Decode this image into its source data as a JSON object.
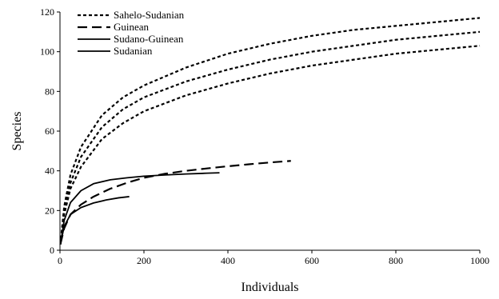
{
  "chart_data": {
    "type": "line",
    "xlabel": "Individuals",
    "ylabel": "Species",
    "xlim": [
      0,
      1000
    ],
    "ylim": [
      0,
      120
    ],
    "xticks": [
      0,
      200,
      400,
      600,
      800,
      1000
    ],
    "yticks": [
      0,
      20,
      40,
      60,
      80,
      100,
      120
    ],
    "grid": false,
    "legend_position": "top-left",
    "legend": [
      "Sahelo-Sudanian",
      "Guinean",
      "Sudano-Guinean",
      "Sudanian"
    ],
    "series": [
      {
        "name": "Sahelo-Sudanian",
        "style": "dotted",
        "curves": [
          {
            "x": [
              1,
              10,
              25,
              50,
              100,
              150,
              200,
              300,
              400,
              500,
              600,
              700,
              800,
              900,
              1000
            ],
            "y": [
              3,
              22,
              38,
              52,
              68,
              77,
              83,
              92,
              99,
              104,
              108,
              111,
              113,
              115,
              117
            ]
          },
          {
            "x": [
              1,
              10,
              25,
              50,
              100,
              150,
              200,
              300,
              400,
              500,
              600,
              700,
              800,
              900,
              1000
            ],
            "y": [
              3,
              20,
              34,
              47,
              62,
              71,
              77,
              85,
              91,
              96,
              100,
              103,
              106,
              108,
              110
            ]
          },
          {
            "x": [
              1,
              10,
              25,
              50,
              100,
              150,
              200,
              300,
              400,
              500,
              600,
              700,
              800,
              900,
              1000
            ],
            "y": [
              3,
              18,
              31,
              42,
              56,
              64,
              70,
              78,
              84,
              89,
              93,
              96,
              99,
              101,
              103
            ]
          }
        ]
      },
      {
        "name": "Guinean",
        "style": "dashed",
        "curves": [
          {
            "x": [
              1,
              10,
              25,
              50,
              80,
              120,
              160,
              200,
              250,
              300,
              350,
              400,
              450,
              500,
              550
            ],
            "y": [
              3,
              11,
              18,
              23,
              27,
              31,
              34,
              36.5,
              38.5,
              40,
              41.2,
              42.3,
              43.3,
              44.2,
              45
            ]
          }
        ]
      },
      {
        "name": "Sudano-Guinean",
        "style": "solid",
        "curves": [
          {
            "x": [
              1,
              10,
              25,
              50,
              80,
              120,
              160,
              200,
              250,
              300,
              350,
              380
            ],
            "y": [
              3,
              15,
              24,
              30,
              33.5,
              35.5,
              36.5,
              37.3,
              37.9,
              38.4,
              38.8,
              39
            ]
          }
        ]
      },
      {
        "name": "Sudanian",
        "style": "solid",
        "curves": [
          {
            "x": [
              1,
              10,
              25,
              50,
              80,
              110,
              140,
              165
            ],
            "y": [
              3,
              12,
              18,
              21.5,
              23.8,
              25.3,
              26.4,
              27
            ]
          }
        ]
      }
    ]
  }
}
